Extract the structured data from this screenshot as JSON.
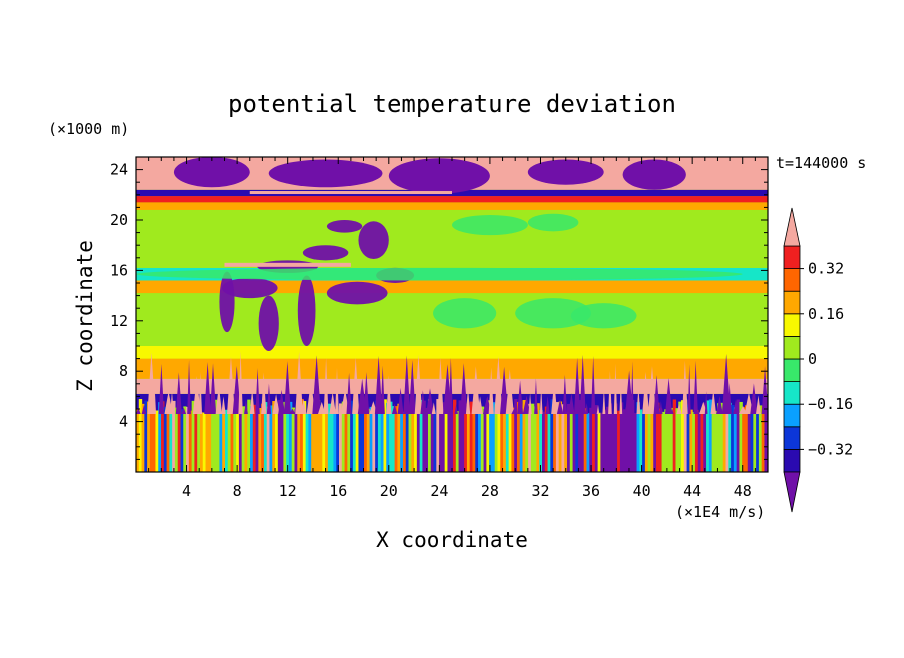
{
  "chart_data": {
    "type": "heatmap",
    "title": "potential temperature deviation",
    "xlabel": "X coordinate",
    "ylabel": "Z coordinate",
    "x_unit": "(×1E4 m/s)",
    "y_unit": "(×1000 m)",
    "time_label": "t=144000 s",
    "xlim": [
      0,
      50
    ],
    "ylim": [
      0,
      25
    ],
    "x_ticks": [
      4,
      8,
      12,
      16,
      20,
      24,
      28,
      32,
      36,
      40,
      44,
      48
    ],
    "x_tick_labels": [
      "4",
      "8",
      "12",
      "16",
      "20",
      "24",
      "28",
      "32",
      "36",
      "40",
      "44",
      "48"
    ],
    "y_ticks": [
      4,
      8,
      12,
      16,
      20,
      24
    ],
    "y_tick_labels": [
      "4",
      "8",
      "12",
      "16",
      "20",
      "24"
    ],
    "colorbar": {
      "levels": [
        -0.4,
        -0.32,
        -0.24,
        -0.16,
        -0.08,
        0,
        0.08,
        0.16,
        0.24,
        0.32,
        0.4
      ],
      "labels": [
        "0.32",
        "0.16",
        "0",
        "−0.16",
        "−0.32"
      ],
      "label_values": [
        0.32,
        0.16,
        0,
        -0.16,
        -0.32
      ],
      "colors": [
        "#7010a8",
        "#2a0ab0",
        "#0c36d8",
        "#0aa0ff",
        "#16e6c8",
        "#38e86a",
        "#a0ea1e",
        "#f8f800",
        "#ffa800",
        "#ff6600",
        "#f02020",
        "#f4a8a0"
      ],
      "extend": "both"
    },
    "bands": [
      {
        "y0": 0.0,
        "y1": 4.6,
        "value": 0.0,
        "note": "mixed"
      },
      {
        "y0": 4.6,
        "y1": 6.2,
        "value": -0.4
      },
      {
        "y0": 6.2,
        "y1": 7.4,
        "value": 0.45
      },
      {
        "y0": 7.4,
        "y1": 9.0,
        "value": 0.2
      },
      {
        "y0": 9.0,
        "y1": 10.0,
        "value": 0.1
      },
      {
        "y0": 10.0,
        "y1": 10.6,
        "value": 0.05
      },
      {
        "y0": 10.6,
        "y1": 14.2,
        "value": 0.02
      },
      {
        "y0": 14.2,
        "y1": 15.2,
        "value": 0.18
      },
      {
        "y0": 15.2,
        "y1": 16.2,
        "value": -0.12
      },
      {
        "y0": 16.2,
        "y1": 20.8,
        "value": 0.04
      },
      {
        "y0": 20.8,
        "y1": 21.4,
        "value": 0.22
      },
      {
        "y0": 21.4,
        "y1": 21.9,
        "value": 0.36
      },
      {
        "y0": 21.9,
        "y1": 22.4,
        "value": -0.4
      },
      {
        "y0": 22.4,
        "y1": 25.0,
        "value": 0.45
      }
    ]
  },
  "colors": {
    "axis": "#000000",
    "background": "#ffffff"
  }
}
